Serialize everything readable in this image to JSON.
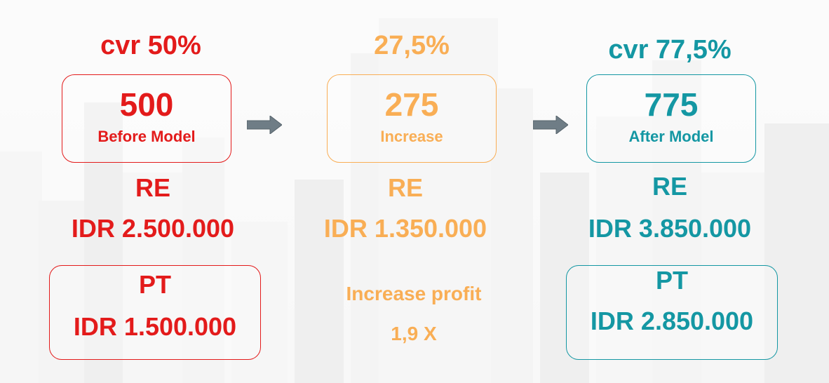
{
  "columns": {
    "before": {
      "cvr": "cvr 50%",
      "count": "500",
      "label": "Before Model",
      "re_title": "RE",
      "re_value": "IDR 2.500.000",
      "pt_title": "PT",
      "pt_value": "IDR 1.500.000",
      "color": "#e31b1b"
    },
    "increase": {
      "cvr": "27,5%",
      "count": "275",
      "label": "Increase",
      "re_title": "RE",
      "re_value": "IDR 1.350.000",
      "profit_label": "Increase profit",
      "profit_value": "1,9 X",
      "color": "#f9ae55"
    },
    "after": {
      "cvr": "cvr 77,5%",
      "count": "775",
      "label": "After Model",
      "re_title": "RE",
      "re_value": "IDR 3.850.000",
      "pt_title": "PT",
      "pt_value": "IDR 2.850.000",
      "color": "#1497a3"
    }
  },
  "icons": {
    "arrow": "arrow-right-icon"
  }
}
